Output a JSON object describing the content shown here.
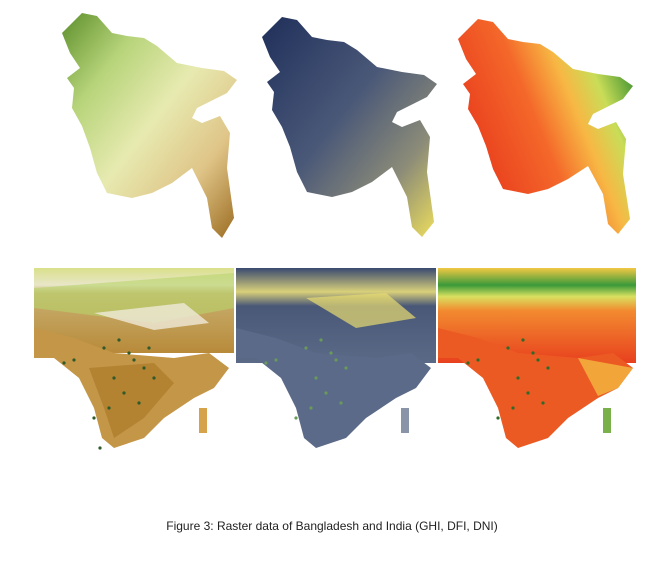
{
  "figure": {
    "caption": "Figure 3: Raster data of Bangladesh and India (GHI, DFI, DNI)"
  },
  "panels": [
    {
      "region": "Bangladesh",
      "variable": "GHI",
      "palette": "yellow-green-brown"
    },
    {
      "region": "Bangladesh",
      "variable": "DFI",
      "palette": "navy-yellow"
    },
    {
      "region": "Bangladesh",
      "variable": "DNI",
      "palette": "red-orange-green"
    },
    {
      "region": "India",
      "variable": "GHI",
      "palette": "yellow-green-brown"
    },
    {
      "region": "India",
      "variable": "DFI",
      "palette": "navy-yellow"
    },
    {
      "region": "India",
      "variable": "DNI",
      "palette": "red-orange-green"
    }
  ],
  "colors": {
    "ghi_low": "#d9e8a8",
    "ghi_mid": "#d7b677",
    "ghi_high": "#9a6a1f",
    "ghi_green": "#5c8f2a",
    "dfi_low": "#1e2f5a",
    "dfi_mid": "#5a6a86",
    "dfi_high": "#e8dc5a",
    "dni_red": "#e83a1c",
    "dni_orange": "#f6a33a",
    "dni_yellow": "#f3e86a",
    "dni_green": "#2f8a2c"
  }
}
